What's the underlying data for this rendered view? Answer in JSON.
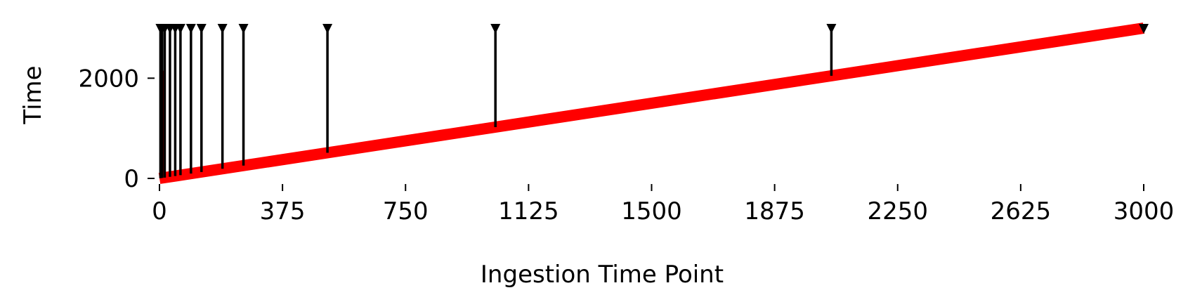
{
  "chart_data": {
    "type": "line",
    "title": "",
    "xlabel": "Ingestion Time Point",
    "ylabel": "Time",
    "xlim": [
      0,
      3000
    ],
    "ylim": [
      0,
      3000
    ],
    "x_ticks": [
      "0",
      "375",
      "750",
      "1125",
      "1500",
      "1875",
      "2250",
      "2625",
      "3000"
    ],
    "y_ticks": [
      "0",
      "2000"
    ],
    "grid": false,
    "legend": "none",
    "series": [
      {
        "color": "#ff0000",
        "x": [
          0,
          3000
        ],
        "y": [
          0,
          3000
        ]
      }
    ],
    "stems": {
      "color": "#000000",
      "top": 3000,
      "points": [
        {
          "x": 3,
          "y": 3
        },
        {
          "x": 8,
          "y": 8
        },
        {
          "x": 16,
          "y": 16
        },
        {
          "x": 32,
          "y": 32
        },
        {
          "x": 48,
          "y": 48
        },
        {
          "x": 64,
          "y": 64
        },
        {
          "x": 96,
          "y": 96
        },
        {
          "x": 128,
          "y": 128
        },
        {
          "x": 192,
          "y": 192
        },
        {
          "x": 256,
          "y": 256
        },
        {
          "x": 512,
          "y": 512
        },
        {
          "x": 1024,
          "y": 1024
        },
        {
          "x": 2048,
          "y": 2048
        },
        {
          "x": 3000,
          "y": 3000
        }
      ]
    },
    "thin_segment": {
      "color": "#cc0000",
      "x": 12,
      "y": [
        0,
        2150
      ]
    }
  }
}
